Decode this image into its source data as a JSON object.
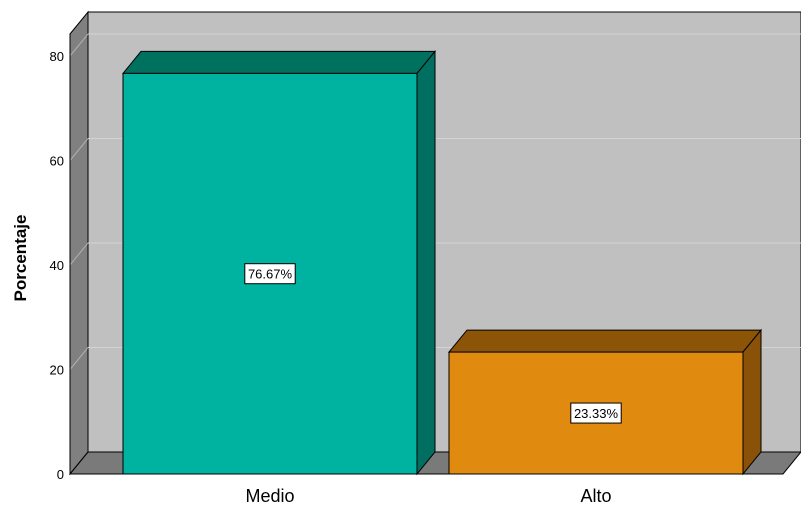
{
  "chart_data": {
    "type": "bar",
    "categories": [
      "Medio",
      "Alto"
    ],
    "values": [
      76.67,
      23.33
    ],
    "value_labels": [
      "76.67%",
      "23.33%"
    ],
    "ylabel": "Porcentaje",
    "xlabel": "",
    "ylim": [
      0,
      80
    ],
    "yticks": [
      "0",
      "20",
      "40",
      "60",
      "80"
    ],
    "grid": true,
    "legend": "none",
    "style": "3d",
    "colors": {
      "bars": [
        "#00B2A0",
        "#E08A10"
      ],
      "bar_tops": [
        "#00705F",
        "#8C5406"
      ],
      "bar_sides": [
        "#006E60",
        "#8A5208"
      ],
      "wall_back": "#C0C0C0",
      "wall_side": "#808080",
      "floor": "#7A7A7A",
      "gridline": "#D4D4D4",
      "label_box": "#FFFFFF"
    }
  }
}
